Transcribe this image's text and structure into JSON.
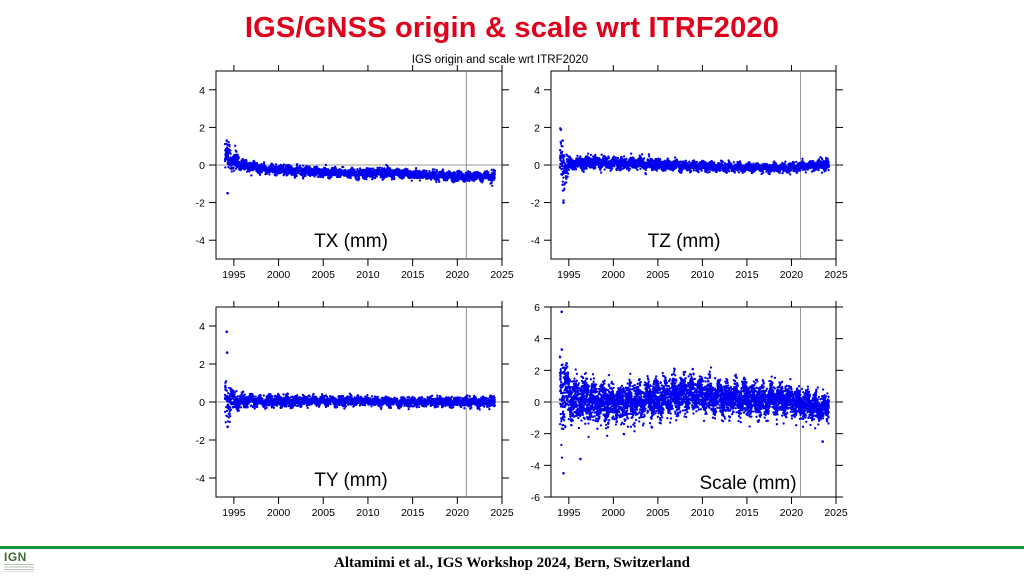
{
  "slide": {
    "title": "IGS/GNSS origin & scale wrt ITRF2020",
    "footer": "Altamimi et al., IGS Workshop 2024, Bern, Switzerland",
    "logo": "IGN"
  },
  "colors": {
    "title": "#e0001b",
    "points": "#0000ee",
    "rule": "#1a9a3a"
  },
  "chart_data": [
    {
      "type": "scatter",
      "figure_title": "IGS origin and scale wrt ITRF2020",
      "panel_label": "TX (mm)",
      "xlim": [
        1993,
        2025
      ],
      "ylim": [
        -5,
        5
      ],
      "xticks": [
        1995,
        2000,
        2005,
        2010,
        2015,
        2020,
        2025
      ],
      "yticks": [
        -4,
        -2,
        0,
        2,
        4
      ],
      "reference_lines": {
        "y": 0,
        "x": 2021
      },
      "grid": false,
      "series": [
        {
          "values_x": [
            1994.0,
            1994.5,
            1995,
            1996,
            1997,
            1998,
            2000,
            2002,
            2004,
            2006,
            2008,
            2010,
            2012,
            2014,
            2016,
            2018,
            2020,
            2021,
            2022,
            2023,
            2024.2
          ],
          "values_y": [
            0.5,
            0.4,
            0.2,
            0.0,
            -0.1,
            -0.2,
            -0.25,
            -0.3,
            -0.35,
            -0.4,
            -0.45,
            -0.45,
            -0.4,
            -0.45,
            -0.5,
            -0.55,
            -0.6,
            -0.6,
            -0.6,
            -0.6,
            -0.55
          ],
          "scatter_sd": [
            0.5,
            0.45,
            0.3,
            0.18,
            0.15,
            0.15,
            0.15,
            0.15,
            0.15,
            0.15,
            0.15,
            0.15,
            0.15,
            0.15,
            0.15,
            0.15,
            0.15,
            0.15,
            0.15,
            0.15,
            0.2
          ]
        }
      ]
    },
    {
      "type": "scatter",
      "panel_label": "TZ (mm)",
      "xlim": [
        1993,
        2025
      ],
      "ylim": [
        -5,
        5
      ],
      "xticks": [
        1995,
        2000,
        2005,
        2010,
        2015,
        2020,
        2025
      ],
      "yticks": [
        -4,
        -2,
        0,
        2,
        4
      ],
      "reference_lines": {
        "y": 0,
        "x": 2021
      },
      "grid": false,
      "series": [
        {
          "values_x": [
            1994.0,
            1994.5,
            1995,
            1996,
            1998,
            2000,
            2002,
            2004,
            2006,
            2008,
            2010,
            2012,
            2014,
            2016,
            2018,
            2020,
            2022,
            2024.2
          ],
          "values_y": [
            0.0,
            -0.3,
            0.0,
            0.1,
            0.15,
            0.1,
            0.1,
            0.05,
            0.0,
            -0.05,
            -0.05,
            -0.1,
            -0.15,
            -0.15,
            -0.15,
            -0.15,
            -0.05,
            0.05
          ],
          "scatter_sd": [
            0.9,
            0.7,
            0.25,
            0.2,
            0.2,
            0.2,
            0.2,
            0.2,
            0.18,
            0.15,
            0.15,
            0.15,
            0.15,
            0.15,
            0.15,
            0.15,
            0.15,
            0.2
          ]
        }
      ]
    },
    {
      "type": "scatter",
      "panel_label": "TY (mm)",
      "xlim": [
        1993,
        2025
      ],
      "ylim": [
        -5,
        5
      ],
      "xticks": [
        1995,
        2000,
        2005,
        2010,
        2015,
        2020,
        2025
      ],
      "yticks": [
        -4,
        -2,
        0,
        2,
        4
      ],
      "reference_lines": {
        "y": 0,
        "x": 2021
      },
      "grid": false,
      "series": [
        {
          "values_x": [
            1994.0,
            1994.5,
            1995,
            1996,
            1998,
            2000,
            2002,
            2004,
            2006,
            2008,
            2010,
            2012,
            2014,
            2016,
            2018,
            2020,
            2022,
            2024.2
          ],
          "values_y": [
            0.2,
            0.1,
            0.05,
            0.05,
            0.05,
            0.05,
            0.05,
            0.05,
            0.05,
            0.05,
            0.05,
            0.0,
            0.0,
            0.0,
            0.0,
            0.0,
            0.0,
            0.0
          ],
          "scatter_sd": [
            0.8,
            0.55,
            0.3,
            0.22,
            0.2,
            0.2,
            0.18,
            0.15,
            0.15,
            0.15,
            0.15,
            0.15,
            0.15,
            0.15,
            0.15,
            0.15,
            0.15,
            0.2
          ]
        }
      ]
    },
    {
      "type": "scatter",
      "panel_label": "Scale (mm)",
      "xlim": [
        1993,
        2025
      ],
      "ylim": [
        -6,
        6
      ],
      "xticks": [
        1995,
        2000,
        2005,
        2010,
        2015,
        2020,
        2025
      ],
      "yticks": [
        -6,
        -4,
        -2,
        0,
        2,
        4,
        6
      ],
      "reference_lines": {
        "y": 0,
        "x": 2021
      },
      "grid": false,
      "series": [
        {
          "values_x": [
            1994.0,
            1994.5,
            1995,
            1996,
            1998,
            2000,
            2002,
            2004,
            2006,
            2008,
            2010,
            2012,
            2014,
            2016,
            2018,
            2020,
            2021,
            2022,
            2023,
            2024.2
          ],
          "values_y": [
            1.2,
            1.0,
            0.5,
            0.2,
            0.0,
            -0.1,
            0.0,
            0.1,
            0.3,
            0.6,
            0.5,
            0.3,
            0.2,
            0.1,
            0.2,
            0.1,
            -0.1,
            -0.3,
            -0.4,
            -0.4
          ],
          "scatter_sd": [
            1.8,
            1.5,
            1.0,
            0.85,
            0.75,
            0.75,
            0.75,
            0.75,
            0.75,
            0.75,
            0.7,
            0.7,
            0.65,
            0.65,
            0.6,
            0.55,
            0.55,
            0.55,
            0.5,
            0.5
          ]
        }
      ]
    }
  ]
}
